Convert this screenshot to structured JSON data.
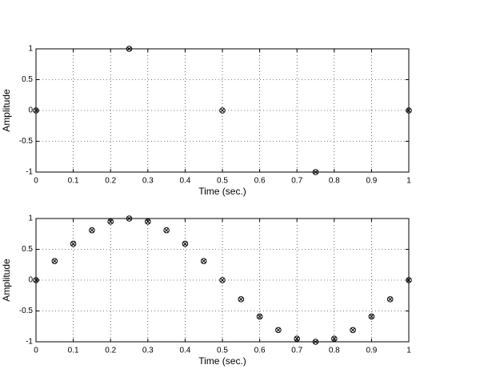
{
  "chart_data": [
    {
      "type": "scatter",
      "xlabel": "Time (sec.)",
      "ylabel": "Amplitude",
      "x": [
        0,
        0.25,
        0.5,
        0.75,
        1
      ],
      "values": [
        0,
        1,
        0,
        -1,
        0
      ],
      "xlim": [
        0,
        1
      ],
      "ylim": [
        -1,
        1
      ],
      "xticks": [
        0,
        0.1,
        0.2,
        0.3,
        0.4,
        0.5,
        0.6,
        0.7,
        0.8,
        0.9,
        1
      ],
      "yticks": [
        -1,
        -0.5,
        0,
        0.5,
        1
      ],
      "grid": true,
      "color": "#000000"
    },
    {
      "type": "scatter",
      "xlabel": "Time (sec.)",
      "ylabel": "Amplitude",
      "x": [
        0,
        0.05,
        0.1,
        0.15,
        0.2,
        0.25,
        0.3,
        0.35,
        0.4,
        0.45,
        0.5,
        0.55,
        0.6,
        0.65,
        0.7,
        0.75,
        0.8,
        0.85,
        0.9,
        0.95,
        1
      ],
      "values": [
        0,
        0.31,
        0.59,
        0.81,
        0.95,
        1,
        0.95,
        0.81,
        0.59,
        0.31,
        0,
        -0.31,
        -0.59,
        -0.81,
        -0.95,
        -1,
        -0.95,
        -0.81,
        -0.59,
        -0.31,
        0
      ],
      "xlim": [
        0,
        1
      ],
      "ylim": [
        -1,
        1
      ],
      "xticks": [
        0,
        0.1,
        0.2,
        0.3,
        0.4,
        0.5,
        0.6,
        0.7,
        0.8,
        0.9,
        1
      ],
      "yticks": [
        -1,
        -0.5,
        0,
        0.5,
        1
      ],
      "grid": true,
      "color": "#000000"
    }
  ]
}
